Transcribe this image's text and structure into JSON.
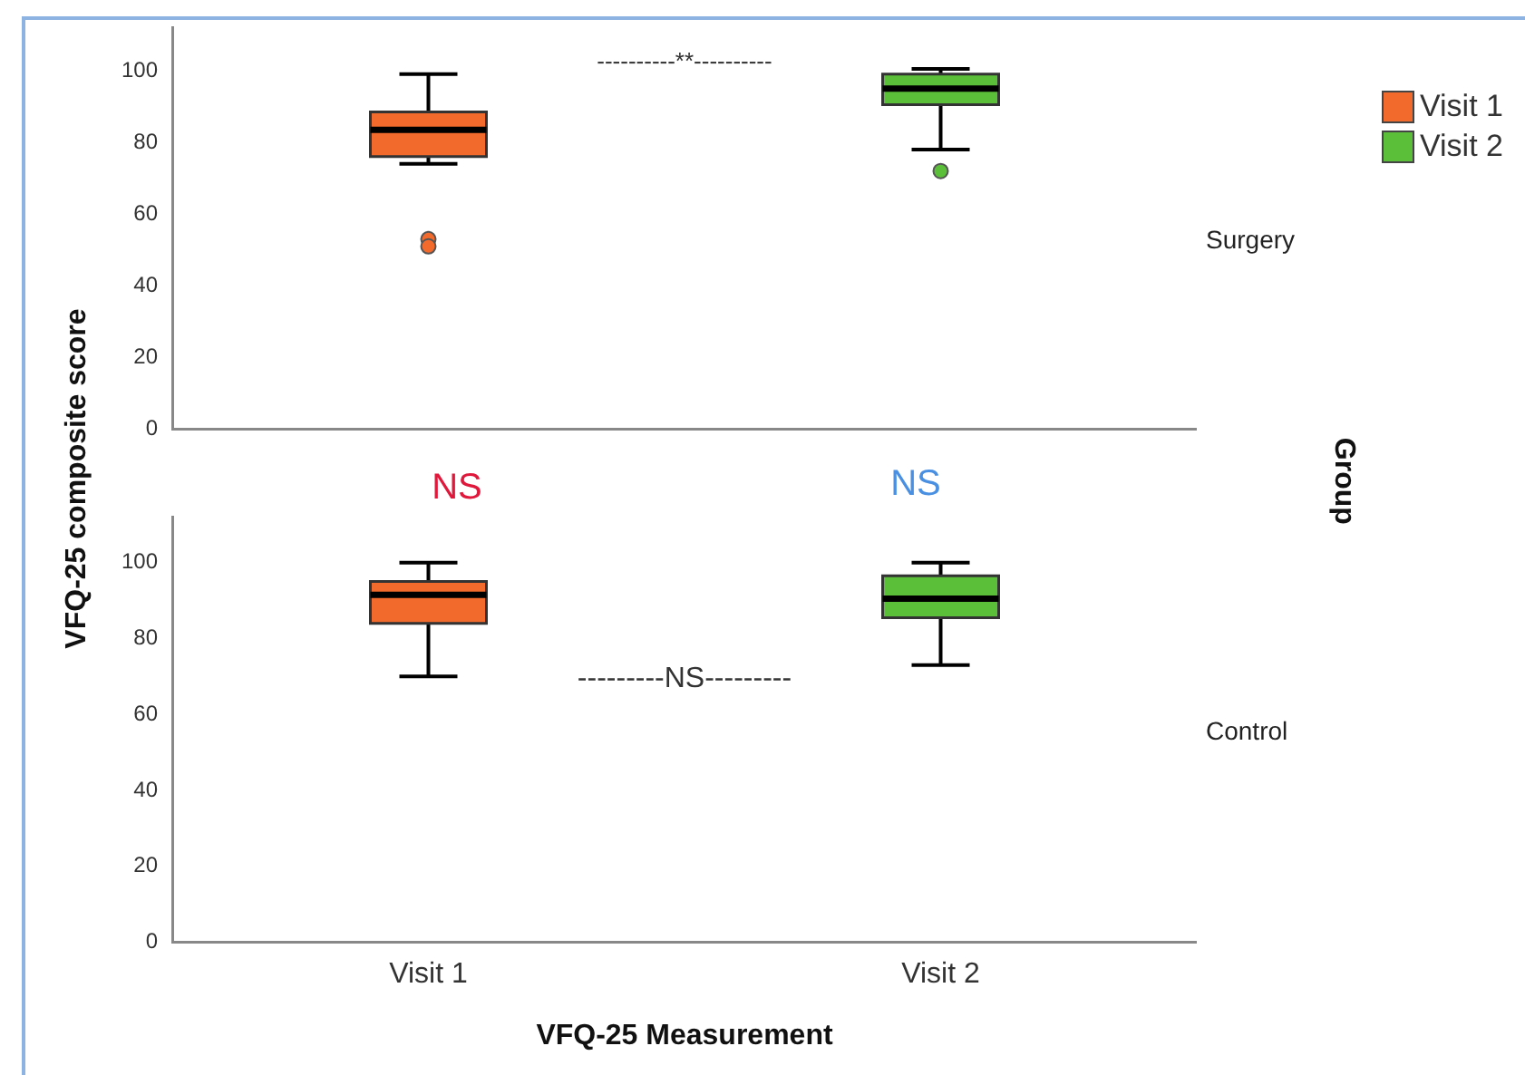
{
  "chart_data": [
    {
      "type": "box",
      "subtitle": "Surgery",
      "ylabel": "VFQ-25 composite score",
      "legend": "top right",
      "categories": [
        null,
        null
      ],
      "ylim": [
        0,
        112
      ],
      "yticks": [
        0,
        20,
        40,
        60,
        80,
        100
      ],
      "tick_labels": "y",
      "grid": false,
      "series": [
        {
          "name": "Visit 1",
          "color": "#f26b2d",
          "boxes": [
            {
              "low": 74,
              "q1": 76,
              "median": 83.5,
              "q3": 88.5,
              "high": 99,
              "outliers": [
                53,
                51
              ]
            },
            null
          ]
        },
        {
          "name": "Visit 2",
          "color": "#5cbf3a",
          "boxes": [
            null,
            {
              "low": 78,
              "q1": 90.5,
              "median": 95,
              "q3": 99,
              "high": 100.5,
              "outliers": [
                72
              ]
            }
          ]
        }
      ],
      "annotations": [
        "----------**----------",
        "Group"
      ]
    },
    {
      "type": "box",
      "subtitle": "Control",
      "xlabel": "VFQ-25 Measurement",
      "categories": [
        "Visit 1",
        "Visit 2"
      ],
      "ylim": [
        0,
        112
      ],
      "yticks": [
        0,
        20,
        40,
        60,
        80,
        100
      ],
      "grid": false,
      "series": [
        {
          "color": "#f26b2d",
          "boxes": [
            {
              "low": 70,
              "q1": 84,
              "median": 91.5,
              "q3": 95,
              "high": 100
            },
            null
          ]
        },
        {
          "color": "#5cbf3a",
          "boxes": [
            null,
            {
              "low": 73,
              "q1": 85.5,
              "median": 90.5,
              "q3": 96.5,
              "high": 100
            }
          ]
        }
      ],
      "annotations": [
        "NS",
        "NS",
        "---------NS---------"
      ]
    }
  ]
}
